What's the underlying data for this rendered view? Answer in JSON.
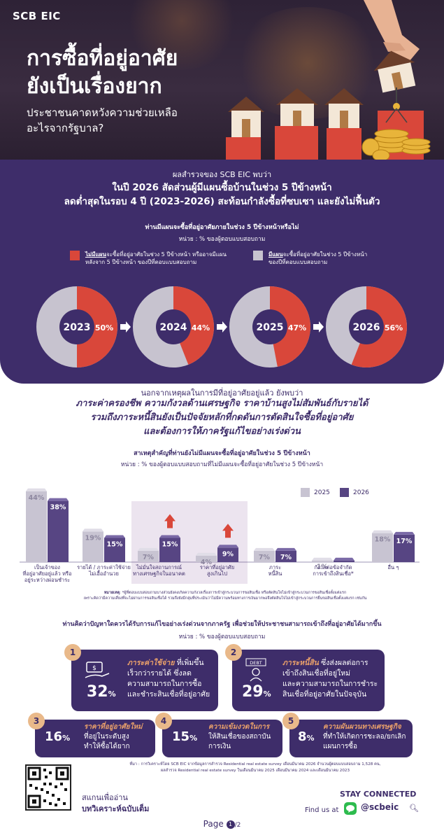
{
  "brand": "SCB EIC",
  "hero": {
    "title_line1": "การซื้อที่อยู่อาศัย",
    "title_line2": "ยังเป็นเรื่องยาก",
    "subtitle_line1": "ประชาชนคาดหวังความช่วยเหลือ",
    "subtitle_line2": "อะไรจากรัฐบาล?"
  },
  "section1": {
    "intro": "ผลสำรวจของ SCB EIC พบว่า",
    "headline_line1": "ในปี 2026 สัดส่วนผู้มีแผนซื้อบ้านในช่วง 5 ปีข้างหน้า",
    "headline_line2": "ลดต่ำสุดในรอบ 4 ปี (2023-2026) สะท้อนกำลังซื้อที่ซบเซา และยังไม่ฟื้นตัว",
    "question": "ท่านมีแผนจะซื้อที่อยู่อาศัยภายในช่วง 5 ปีข้างหน้าหรือไม่",
    "unit": "หน่วย : % ของผู้ตอบแบบสอบถาม",
    "legend_no_bold": "ไม่มีแผน",
    "legend_no_rest_line1": "จะซื้อที่อยู่อาศัยในช่วง 5 ปีข้างหน้า หรืออาจมีแผน",
    "legend_no_rest_line2": "หลังจาก 5 ปีข้างหน้า ของปีที่ตอบแบบสอบถาม",
    "legend_yes_bold": "มีแผน",
    "legend_yes_rest_line1": "จะซื้อที่อยู่อาศัยในช่วง 5 ปีข้างหน้า",
    "legend_yes_rest_line2": "ของปีที่ตอบแบบสอบถาม"
  },
  "colors": {
    "purple": "#3e2d6a",
    "red": "#d9473a",
    "gray": "#c7c3cf",
    "bar_2025": "#c8c4d2",
    "bar_2026": "#574583",
    "highlight_box": "#ece4ef",
    "accent": "#e9a06a",
    "up_arrow": "#d9473a"
  },
  "chart_data": [
    {
      "type": "pie",
      "title": "ท่านมีแผนจะซื้อที่อยู่อาศัยภายในช่วง 5 ปีข้างหน้าหรือไม่",
      "categories": [
        "2023",
        "2024",
        "2025",
        "2026"
      ],
      "series": [
        {
          "name": "ไม่มีแผน",
          "values": [
            50,
            44,
            47,
            56
          ]
        }
      ],
      "labels": [
        "50%",
        "44%",
        "47%",
        "56%"
      ]
    },
    {
      "type": "bar",
      "title": "สาเหตุสำคัญที่ท่านยังไม่มีแผนจะซื้อที่อยู่อาศัยในช่วง 5 ปีข้างหน้า",
      "unit": "หน่วย : % ของผู้ตอบแบบสอบถามที่ไม่มีแผนจะซื้อที่อยู่อาศัยในช่วง 5 ปีข้างหน้า",
      "categories": [
        [
          "เป็นเจ้าของ",
          "ที่อยู่อาศัยอยู่แล้ว หรือ",
          "อยู่ระหว่างผ่อนชำระ"
        ],
        [
          "รายได้ / ภาระค่าใช้จ่าย",
          "ไม่เอื้ออำนวย"
        ],
        [
          "ไม่มั่นใจสถานการณ์",
          "ทางเศรษฐกิจในอนาคต"
        ],
        [
          "ราคาที่อยู่อาศัย",
          "สูงเกินไป"
        ],
        [
          "ภาระ",
          "หนี้สิน"
        ],
        [
          "กังวลต่อข้อจำกัด",
          "การเข้าถึงสินเชื่อ*"
        ],
        [
          "อื่น ๆ"
        ]
      ],
      "series": [
        {
          "name": "2025",
          "values": [
            44,
            19,
            7,
            4,
            7,
            1,
            18
          ]
        },
        {
          "name": "2026",
          "values": [
            38,
            15,
            15,
            9,
            7,
            1,
            17
          ]
        }
      ],
      "labels_2025": [
        "44%",
        "19%",
        "7%",
        "4%",
        "7%",
        "1%",
        "18%"
      ],
      "labels_2026": [
        "38%",
        "15%",
        "15%",
        "9%",
        "7%",
        "1%",
        "17%"
      ],
      "ylim": [
        0,
        50
      ],
      "legend": "top-right"
    }
  ],
  "section2": {
    "intro": "นอกจากเหตุผลในการมีที่อยู่อาศัยอยู่แล้ว ยังพบว่า",
    "headline_line1": "ภาระค่าครองชีพ ความกังวลด้านเศรษฐกิจ ราคาบ้านสูงไม่สัมพันธ์กับรายได้",
    "headline_line2": "รวมถึงภาระหนี้สินยังเป็นปัจจัยหลักที่กดดันการตัดสินใจซื้อที่อยู่อาศัย",
    "headline_line3": "และต้องการให้ภาครัฐแก้ไขอย่างเร่งด่วน",
    "question": "สาเหตุสำคัญที่ท่านยังไม่มีแผนจะซื้อที่อยู่อาศัยในช่วง 5 ปีข้างหน้า",
    "unit": "หน่วย : % ของผู้ตอบแบบสอบถามที่ไม่มีแผนจะซื้อที่อยู่อาศัยในช่วง 5 ปีข้างหน้า",
    "note_label": "หมายเหตุ",
    "note_line1": ": *ผู้ที่ตอบแบบสอบถามบางส่วนยังคงเกิดความกังวลเรื่องการเข้าสู่กระบวนการขอสินเชื่อ หรือตัดสินใจไม่เข้าสู่กระบวนการขอสินเชื่อตั้งแต่แรก",
    "note_line2": "เพราะคิดว่ามีความเสี่ยงที่จะไม่ผ่านการขอสินเชื่อได้ รวมถึงยังมีกลุ่มที่ประเมินว่าไม่มีความพร้อมทางการเงินมากพอจึงตัดสินใจไม่เข้าสู่กระบวนการยื่นขอสินเชื่อตั้งแต่แรก เช่นกัน"
  },
  "section3": {
    "question": "ท่านคิดว่าปัญหาใดควรได้รับการแก้ไขอย่างเร่งด่วนจากภาครัฐ เพื่อช่วยให้ประชาชนสามารถเข้าถึงที่อยู่อาศัยได้มากขึ้น",
    "unit": "หน่วย : % ของผู้ตอบแบบสอบถาม",
    "cards": [
      {
        "num": "1",
        "pct": "32",
        "title": "ภาระค่าใช้จ่าย",
        "title_rest": " ที่เพิ่มขึ้น",
        "l2": "เร็วกว่ารายได้ ซึ่งลด",
        "l3": "ความสามารถในการซื้อ",
        "l4": "และชำระสินเชื่อที่อยู่อาศัย"
      },
      {
        "num": "2",
        "pct": "29",
        "title": "ภาระหนี้สิน",
        "title_rest": " ซึ่งส่งผลต่อการ",
        "l2": "เข้าถึงสินเชื่อที่อยู่ใหม่",
        "l3": "และความสามารถในการชำระ",
        "l4": "สินเชื่อที่อยู่อาศัยในปัจจุบัน",
        "icon": "DEBT"
      },
      {
        "num": "3",
        "pct": "16",
        "title": "ราคาที่อยู่อาศัยใหม่",
        "l2": "ที่อยู่ในระดับสูง",
        "l3": "ทำให้ซื้อได้ยาก"
      },
      {
        "num": "4",
        "pct": "15",
        "title": "ความเข้มงวดในการ",
        "l2": "ให้สินเชื่อของสถาบัน",
        "l3": "การเงิน"
      },
      {
        "num": "5",
        "pct": "8",
        "title": "ความผันผวนทางเศรษฐกิจ",
        "l2": "ที่ทำให้เกิดการชะลอ/ยกเลิก",
        "l3": "แผนการซื้อ"
      }
    ],
    "pct_unit": "%"
  },
  "footer": {
    "source_line1": "ที่มา : การวิเคราะห์โดย SCB EIC จากข้อมูลการสำรวจ Residential real estate survey เดือนมีนาคม 2026 จำนวนผู้ตอบแบบสอบถาม 1,528 คน,",
    "source_line2": "ผลสำรวจ Residential real estate survey ในเดือนมีนาคม 2025 เดือนมีนาคม 2024 และเดือนมีนาคม 2023",
    "scan_line1": "สแกนเพื่ออ่าน",
    "scan_line2": "บทวิเคราะห์ฉบับเต็ม",
    "stay": "STAY CONNECTED",
    "find_us": "Find us at",
    "handle": "@scbeic",
    "page_label": "Page",
    "page_num": "1",
    "page_total": "/2"
  }
}
